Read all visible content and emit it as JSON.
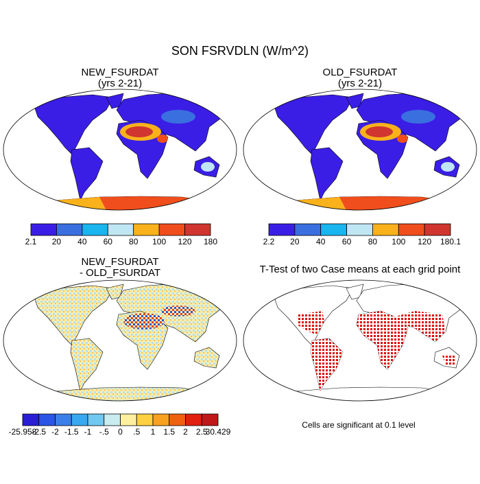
{
  "title": "SON FSRVDLN (W/m^2)",
  "panels": [
    {
      "title": "NEW_FSURDAT",
      "subtitle": "(yrs 2-21)",
      "colorbar": {
        "colors": [
          "#3a1ee6",
          "#3a6fdf",
          "#19b5ef",
          "#bfe6f3",
          "#f9b21b",
          "#f04e1c",
          "#d03530"
        ],
        "labels": [
          "2.1",
          "20",
          "40",
          "60",
          "80",
          "100",
          "120",
          "180"
        ]
      }
    },
    {
      "title": "OLD_FSURDAT",
      "subtitle": "(yrs 2-21)",
      "colorbar": {
        "colors": [
          "#3a1ee6",
          "#3a6fdf",
          "#19b5ef",
          "#bfe6f3",
          "#f9b21b",
          "#f04e1c",
          "#d03530"
        ],
        "labels": [
          "2.2",
          "20",
          "40",
          "60",
          "80",
          "100",
          "120",
          "180.1"
        ]
      }
    },
    {
      "title": "NEW_FSURDAT",
      "subtitle": "- OLD_FSURDAT",
      "colorbar": {
        "colors": [
          "#2a1fd6",
          "#2a55e6",
          "#3a80e8",
          "#3aa8f0",
          "#70c8f0",
          "#c8ecf0",
          "#fff0a0",
          "#ffd040",
          "#f8a020",
          "#f06010",
          "#e02010",
          "#c01818"
        ],
        "labels": [
          "-25.958",
          "-2.5",
          "-2",
          "-1.5",
          "-1",
          "-.5",
          "0",
          ".5",
          "1",
          "1.5",
          "2",
          "2.5",
          "30.429"
        ]
      }
    },
    {
      "title": "T-Test of two Case means at each grid point",
      "note": "Cells are significant at 0.1 level"
    }
  ]
}
